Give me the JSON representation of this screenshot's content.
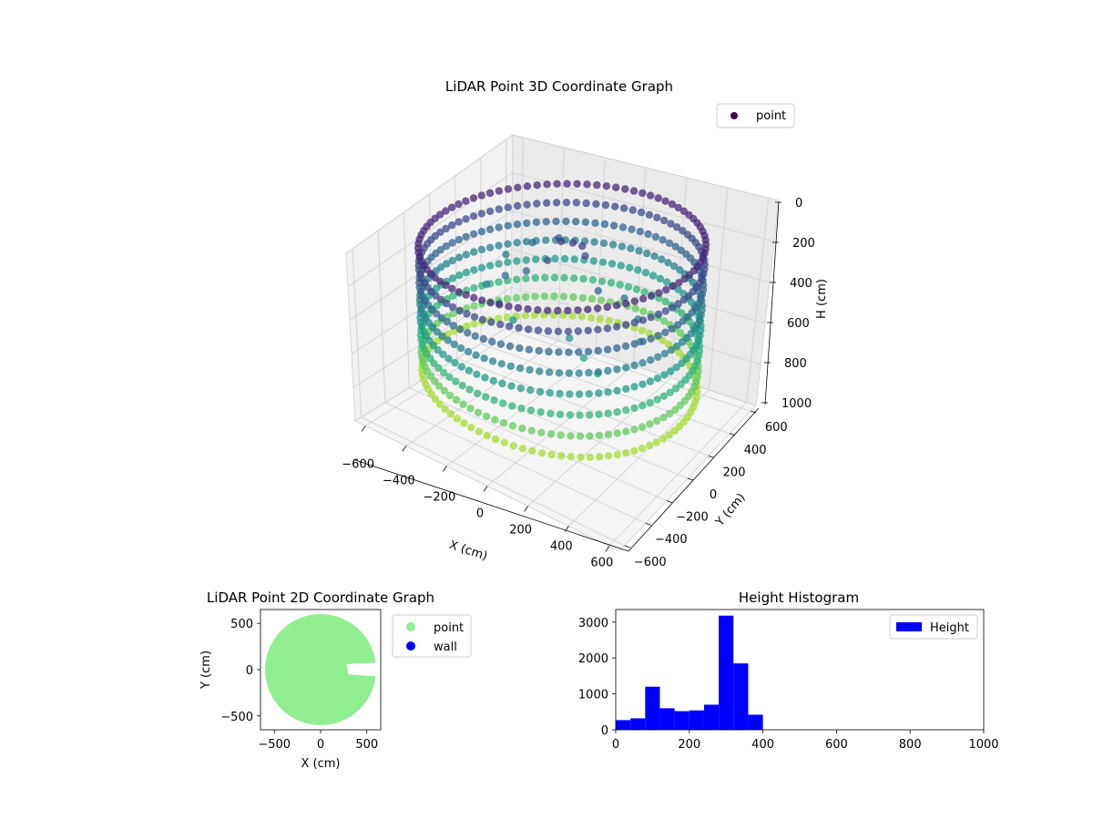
{
  "chart_data": [
    {
      "type": "scatter",
      "projection": "3d",
      "title": "LiDAR Point 3D Coordinate Graph",
      "xlabel": "X (cm)",
      "ylabel": "Y (cm)",
      "zlabel": "H (cm)",
      "xlim": [
        -650,
        650
      ],
      "ylim": [
        -650,
        650
      ],
      "zlim": [
        0,
        1000
      ],
      "zaxis_inverted": true,
      "xticks": [
        -600,
        -400,
        -200,
        0,
        200,
        400,
        600
      ],
      "yticks": [
        -600,
        -400,
        -200,
        0,
        200,
        400,
        600
      ],
      "zticks": [
        0,
        200,
        400,
        600,
        800,
        1000
      ],
      "xtick_labels": [
        "−600",
        "−400",
        "−200",
        "0",
        "200",
        "400",
        "600"
      ],
      "ytick_labels": [
        "−600",
        "−400",
        "−200",
        "0",
        "200",
        "400",
        "600"
      ],
      "ztick_labels": [
        "0",
        "200",
        "400",
        "600",
        "800",
        "1000"
      ],
      "colormap": "viridis",
      "legend": {
        "entries": [
          "point"
        ],
        "color": "#440154",
        "loc": "upper right"
      },
      "grid": true,
      "series": [
        {
          "name": "point",
          "description_of_shape": "ring wall of radius ~600 cm spanning heights ~100-800 cm, plus interior clusters",
          "ring": {
            "radius": 600,
            "h_top": 100,
            "h_bottom": 780
          },
          "interior_points": [
            {
              "x": -80,
              "y": 120,
              "h": 150
            },
            {
              "x": -40,
              "y": 150,
              "h": 160
            },
            {
              "x": 0,
              "y": 160,
              "h": 170
            },
            {
              "x": 40,
              "y": 120,
              "h": 190
            },
            {
              "x": -120,
              "y": 80,
              "h": 240
            },
            {
              "x": -200,
              "y": 40,
              "h": 300
            },
            {
              "x": -280,
              "y": 0,
              "h": 330
            },
            {
              "x": -350,
              "y": -40,
              "h": 380
            },
            {
              "x": -250,
              "y": -100,
              "h": 420
            },
            {
              "x": -150,
              "y": -150,
              "h": 450
            },
            {
              "x": 100,
              "y": -100,
              "h": 480
            },
            {
              "x": 200,
              "y": -150,
              "h": 520
            },
            {
              "x": 300,
              "y": -200,
              "h": 540
            },
            {
              "x": 150,
              "y": 50,
              "h": 300
            },
            {
              "x": 250,
              "y": 100,
              "h": 330
            },
            {
              "x": 350,
              "y": 50,
              "h": 380
            },
            {
              "x": 420,
              "y": -50,
              "h": 420
            },
            {
              "x": -400,
              "y": 200,
              "h": 350
            },
            {
              "x": -300,
              "y": 250,
              "h": 280
            },
            {
              "x": -200,
              "y": 300,
              "h": 250
            }
          ]
        }
      ]
    },
    {
      "type": "scatter",
      "title": "LiDAR Point 2D Coordinate Graph",
      "xlabel": "X (cm)",
      "ylabel": "Y (cm)",
      "xlim": [
        -650,
        650
      ],
      "ylim": [
        -650,
        650
      ],
      "xticks": [
        -500,
        0,
        500
      ],
      "yticks": [
        -500,
        0,
        500
      ],
      "xtick_labels": [
        "−500",
        "0",
        "500"
      ],
      "ytick_labels": [
        "−500",
        "0",
        "500"
      ],
      "legend": {
        "loc": "outside right"
      },
      "series": [
        {
          "name": "point",
          "color": "#90ee90",
          "shape": "filled disc of radius ~600 cm with notch near X 280-650, Y -60 to 60"
        },
        {
          "name": "wall",
          "color": "#0000ff",
          "points": []
        }
      ]
    },
    {
      "type": "bar",
      "subtype": "histogram",
      "title": "Height Histogram",
      "xlim": [
        0,
        1000
      ],
      "ylim": [
        0,
        3350
      ],
      "xticks": [
        0,
        200,
        400,
        600,
        800,
        1000
      ],
      "yticks": [
        0,
        1000,
        2000,
        3000
      ],
      "bin_width": 40,
      "bin_edges": [
        0,
        40,
        80,
        120,
        160,
        200,
        240,
        280,
        320,
        360
      ],
      "values": [
        270,
        320,
        1200,
        600,
        520,
        540,
        700,
        3180,
        1850,
        420
      ],
      "color": "#0000ff",
      "legend": {
        "entries": [
          "Height"
        ],
        "loc": "upper right"
      }
    }
  ]
}
